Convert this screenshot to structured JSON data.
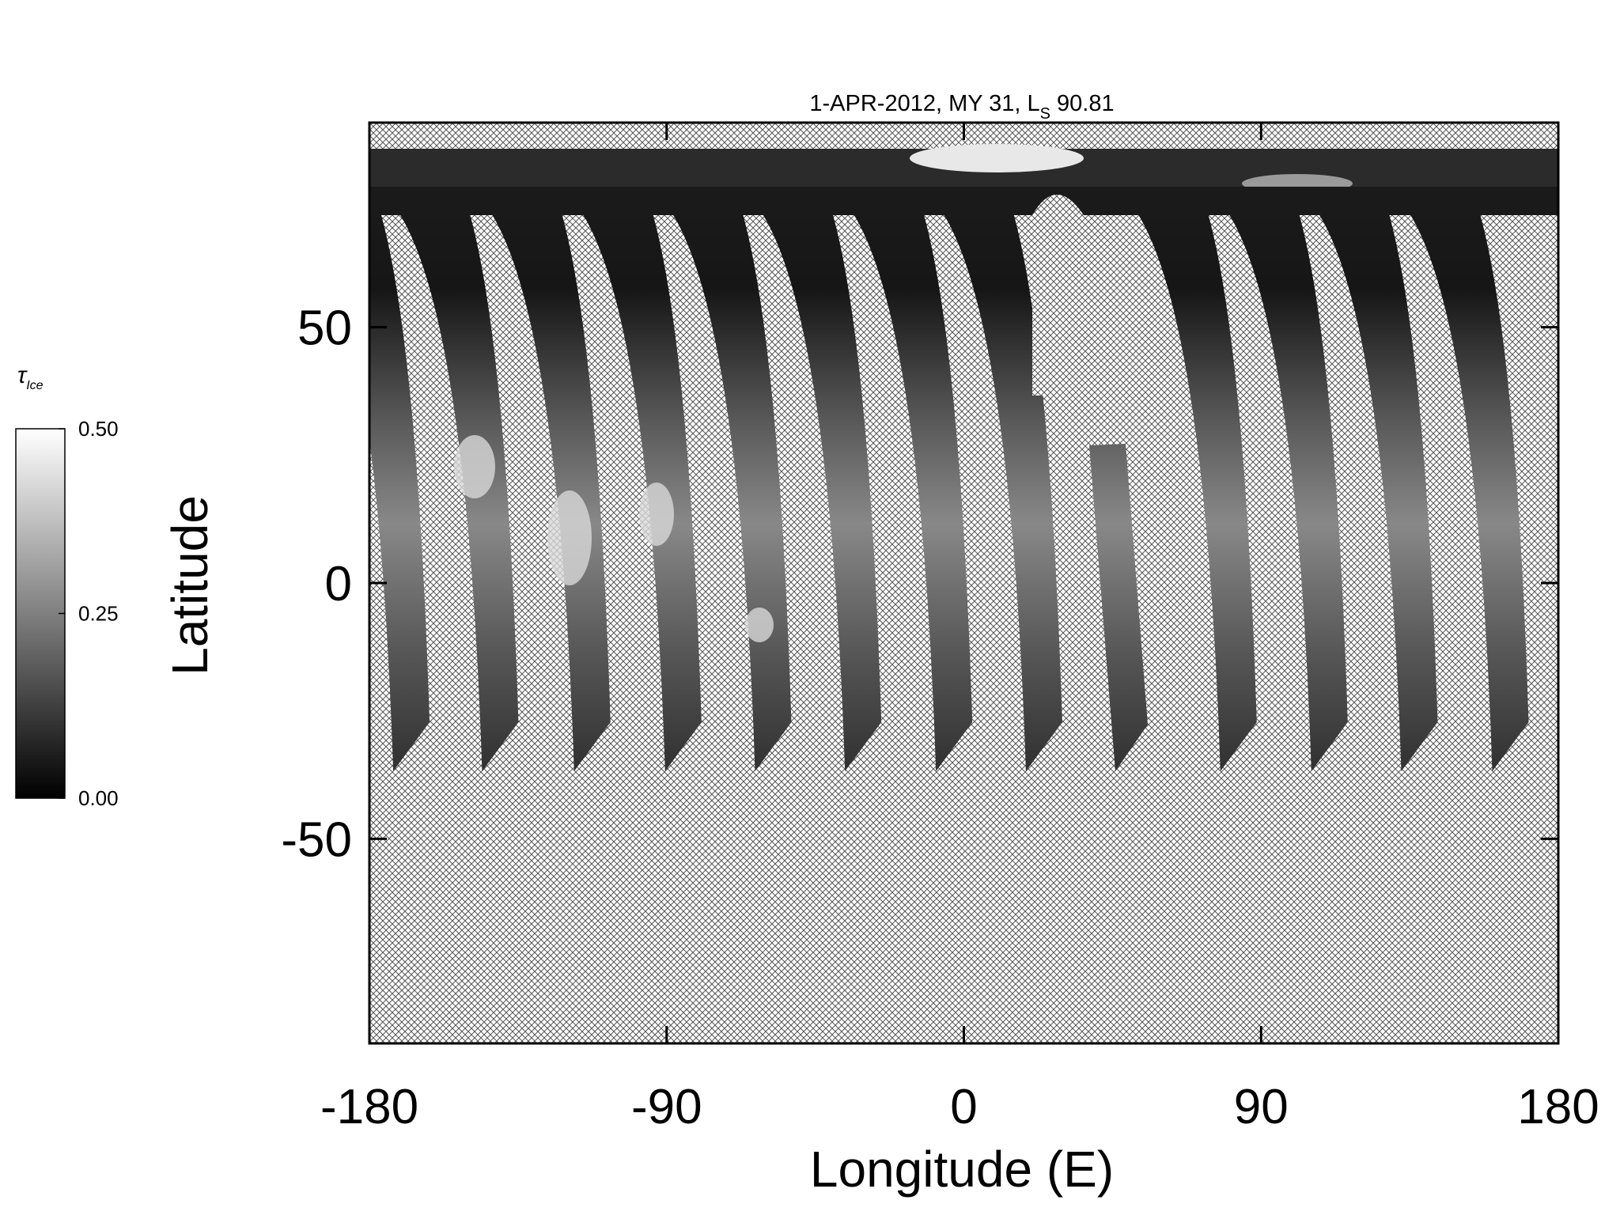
{
  "chart_data": {
    "type": "map",
    "title": {
      "main": "1-APR-2012, MY 31,  L",
      "sub": "S",
      "tail": " 90.81"
    },
    "xlabel": "Longitude (E)",
    "ylabel": "Latitude",
    "xlim": [
      -180,
      180
    ],
    "xticks": [
      -180,
      -90,
      0,
      90,
      180
    ],
    "ylim": [
      -90,
      90
    ],
    "yticks": [
      -50,
      0,
      50
    ],
    "colorbar": {
      "label": {
        "main": "τ",
        "sub": "Ice"
      },
      "lim": [
        0,
        0.5
      ],
      "ticks": [
        {
          "value": 0,
          "label": "0.00"
        },
        {
          "value": 0.25,
          "label": "0.25"
        },
        {
          "value": 0.5,
          "label": "0.50"
        }
      ],
      "colors": [
        "#000000",
        "#ffffff"
      ]
    }
  }
}
